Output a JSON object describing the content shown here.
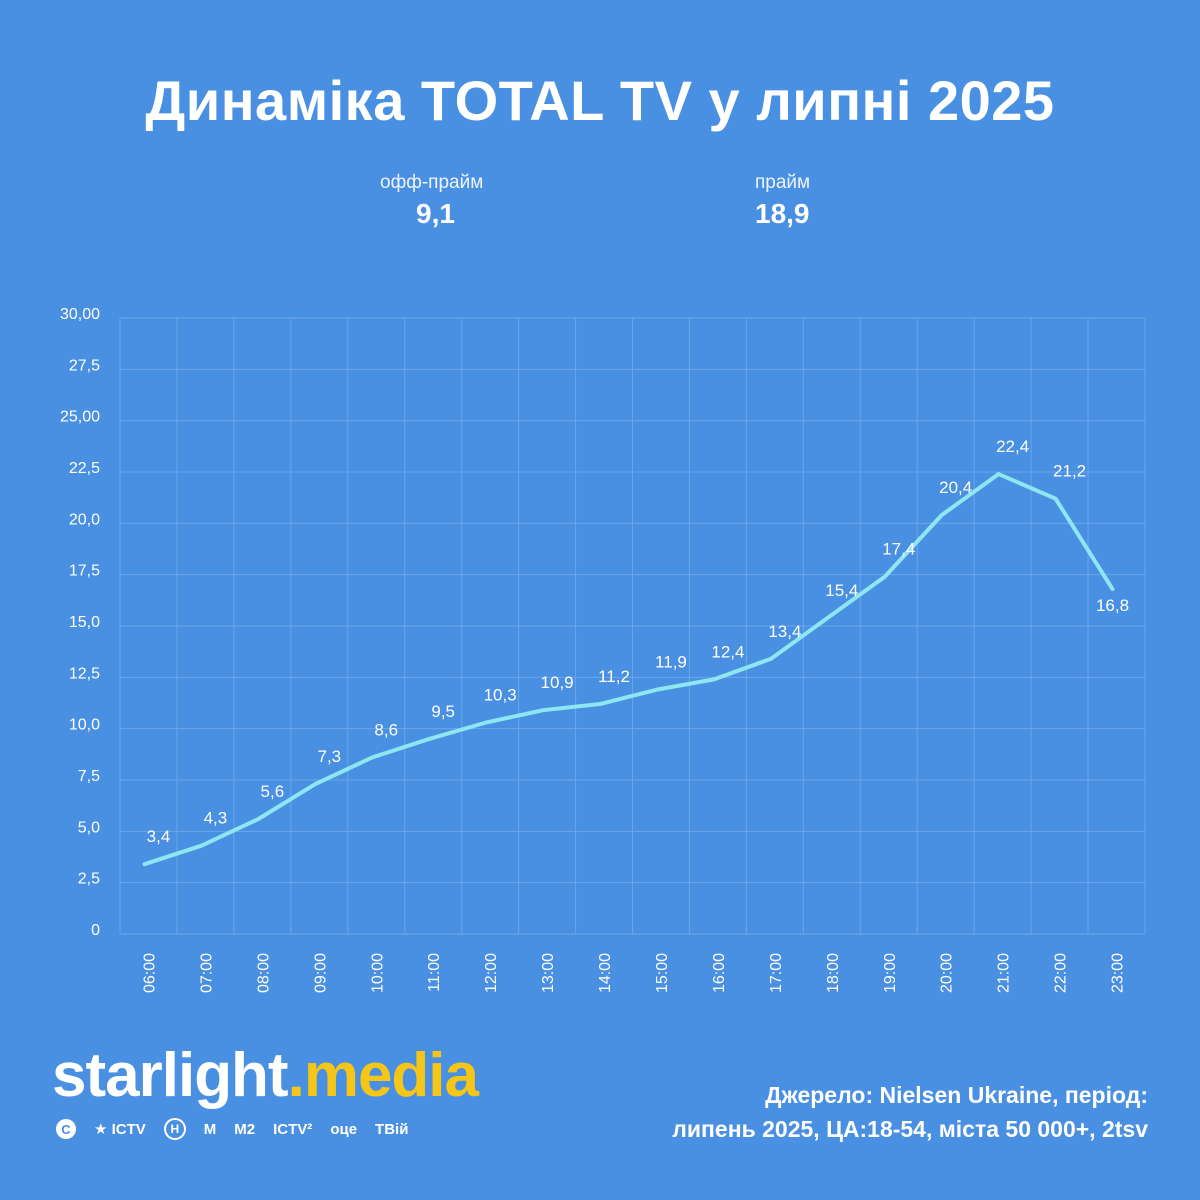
{
  "title": "Динаміка TOTAL TV у липні 2025",
  "kpis": {
    "off_prime": {
      "label": "офф-прайм",
      "value": "9,1"
    },
    "prime": {
      "label": "прайм",
      "value": "18,9"
    }
  },
  "chart_data": {
    "type": "line",
    "title": "Динаміка TOTAL TV у липні 2025",
    "xlabel": "",
    "ylabel": "",
    "categories": [
      "06:00",
      "07:00",
      "08:00",
      "09:00",
      "10:00",
      "11:00",
      "12:00",
      "13:00",
      "14:00",
      "15:00",
      "16:00",
      "17:00",
      "18:00",
      "19:00",
      "20:00",
      "21:00",
      "22:00",
      "23:00"
    ],
    "series": [
      {
        "values": [
          3.4,
          4.3,
          5.6,
          7.3,
          8.6,
          9.5,
          10.3,
          10.9,
          11.2,
          11.9,
          12.4,
          13.4,
          15.4,
          17.4,
          20.4,
          22.4,
          21.2,
          16.8
        ],
        "labels": [
          "3,4",
          "4,3",
          "5,6",
          "7,3",
          "8,6",
          "9,5",
          "10,3",
          "10,9",
          "11,2",
          "11,9",
          "12,4",
          "13,4",
          "15,4",
          "17,4",
          "20,4",
          "22,4",
          "21,2",
          "16,8"
        ]
      }
    ],
    "ylim": [
      0,
      30
    ],
    "yticks": [
      0,
      2.5,
      5,
      7.5,
      10,
      12.5,
      15,
      17.5,
      20,
      22.5,
      25,
      27.5,
      30
    ],
    "ytick_labels": [
      "0",
      "2,5",
      "5,0",
      "7,5",
      "10,0",
      "12,5",
      "15,0",
      "17,5",
      "20,0",
      "22,5",
      "25,00",
      "27,5",
      "30,00"
    ],
    "grid": true,
    "colors": {
      "line": "#8ee6f0",
      "grid": "#6aa6ea"
    }
  },
  "brand": {
    "name_part1": "starlight",
    "name_part2": ".media"
  },
  "channels": [
    {
      "icon": "c-channel-icon",
      "text": "С"
    },
    {
      "icon": "star-icon",
      "text": "ICTV"
    },
    {
      "icon": "h-channel-icon",
      "text": "Н"
    },
    {
      "icon": "m1-channel-icon",
      "text": "М"
    },
    {
      "icon": "m2-channel-icon",
      "text": "М2"
    },
    {
      "icon": "ictv2-channel-icon",
      "text": "ICTV²"
    },
    {
      "icon": "oce-channel-icon",
      "text": "оце"
    },
    {
      "icon": "tviy-channel-icon",
      "text": "ТВій"
    }
  ],
  "source": {
    "line1": "Джерело: Nielsen Ukraine, період:",
    "line2": "липень 2025, ЦА:18-54, міста 50 000+, 2tsv"
  }
}
